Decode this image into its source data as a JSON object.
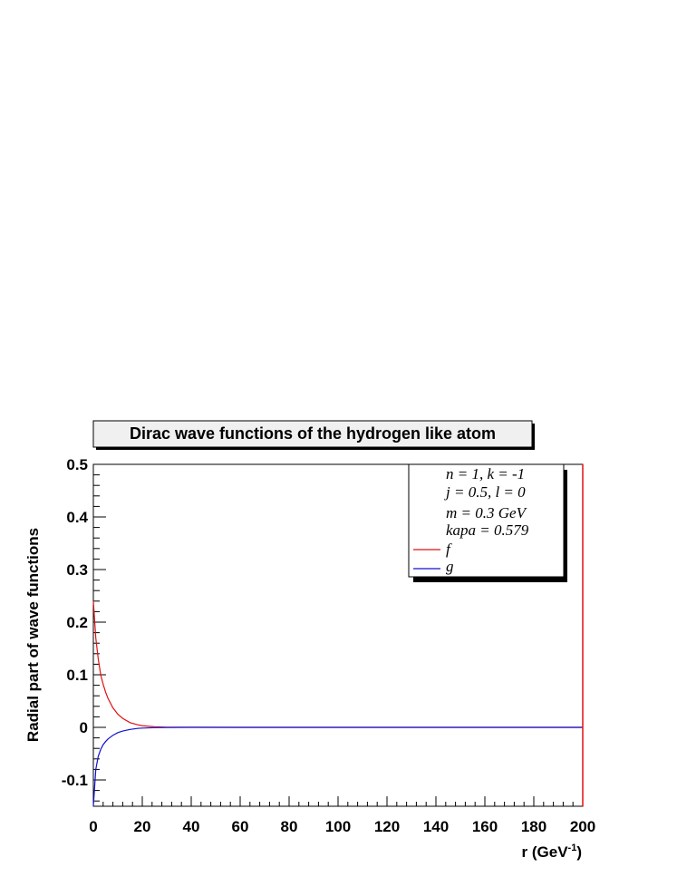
{
  "chart_data": {
    "type": "line",
    "title": "Dirac wave functions of the hydrogen like atom",
    "xlabel": "r (GeV",
    "xlabel_superscript": "-1",
    "xlabel_close": ")",
    "ylabel": "Radial part of wave functions",
    "xlim": [
      0,
      200
    ],
    "ylim": [
      -0.15,
      0.5
    ],
    "xticks": [
      0,
      20,
      40,
      60,
      80,
      100,
      120,
      140,
      160,
      180,
      200
    ],
    "xtick_labels": [
      "0",
      "20",
      "40",
      "60",
      "80",
      "100",
      "120",
      "140",
      "160",
      "180",
      "200"
    ],
    "yticks": [
      -0.1,
      0,
      0.1,
      0.2,
      0.3,
      0.4,
      0.5
    ],
    "ytick_labels": [
      "-0.1",
      "0",
      "0.1",
      "0.2",
      "0.3",
      "0.4",
      "0.5"
    ],
    "grid": false,
    "legend_position": "top-right",
    "legend_info": [
      "n = 1, k = -1",
      "j = 0.5, l = 0",
      "m = 0.3 GeV",
      "kapa = 0.579"
    ],
    "series": [
      {
        "name": "f",
        "color": "#e01010",
        "x": [
          0,
          1,
          2,
          3,
          4,
          5,
          6,
          8,
          10,
          12,
          15,
          18,
          20,
          25,
          30,
          40,
          60,
          100,
          150,
          200
        ],
        "y": [
          0.24,
          0.17,
          0.13,
          0.1,
          0.082,
          0.067,
          0.055,
          0.037,
          0.025,
          0.017,
          0.009,
          0.005,
          0.0033,
          0.0012,
          0.0004,
          0.0001,
          0,
          0,
          0,
          0
        ]
      },
      {
        "name": "g",
        "color": "#1010d0",
        "x": [
          0,
          1,
          2,
          3,
          4,
          5,
          6,
          8,
          10,
          12,
          15,
          18,
          20,
          25,
          30,
          40,
          60,
          100,
          150,
          200
        ],
        "y": [
          -0.15,
          -0.08,
          -0.055,
          -0.042,
          -0.033,
          -0.027,
          -0.022,
          -0.015,
          -0.01,
          -0.007,
          -0.004,
          -0.002,
          -0.0013,
          -0.0005,
          -0.0002,
          0,
          0,
          0,
          0,
          0
        ]
      }
    ]
  }
}
